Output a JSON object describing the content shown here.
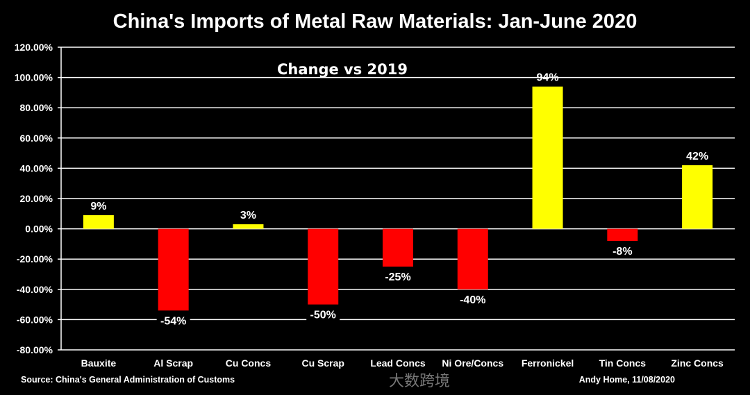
{
  "chart_data": {
    "type": "bar",
    "title": "China's Imports of Metal Raw Materials: Jan-June 2020",
    "subtitle": "Change vs 2019",
    "categories": [
      "Bauxite",
      "Al Scrap",
      "Cu Concs",
      "Cu Scrap",
      "Lead Concs",
      "Ni Ore/Concs",
      "Ferronickel",
      "Tin Concs",
      "Zinc Concs"
    ],
    "values": [
      9,
      -54,
      3,
      -50,
      -25,
      -40,
      94,
      -8,
      42
    ],
    "data_labels": [
      "9%",
      "-54%",
      "3%",
      "-50%",
      "-25%",
      "-40%",
      "94%",
      "-8%",
      "42%"
    ],
    "ylim": [
      -80,
      120
    ],
    "yticks": [
      120,
      100,
      80,
      60,
      40,
      20,
      0,
      -20,
      -40,
      -60,
      -80
    ],
    "ytick_labels": [
      "120.00%",
      "100.00%",
      "80.00%",
      "60.00%",
      "40.00%",
      "20.00%",
      "0.00%",
      "-20.00%",
      "-40.00%",
      "-60.00%",
      "-80.00%"
    ],
    "grid": true,
    "xlabel": "",
    "ylabel": "",
    "colors": {
      "positive": "#ffff00",
      "negative": "#ff0000",
      "background": "#000000",
      "grid": "#ffffff"
    }
  },
  "footer": {
    "source": "Source: China's General Administration of Customs",
    "credit": "Andy Home, 11/08/2020"
  },
  "watermark": "大数跨境"
}
